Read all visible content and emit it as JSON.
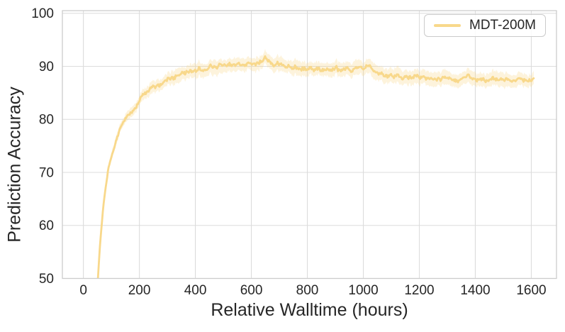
{
  "figure": {
    "background": "#ffffff"
  },
  "chart_data": {
    "type": "line",
    "title": "",
    "xlabel": "Relative Walltime (hours)",
    "ylabel": "Prediction Accuracy",
    "xlim": [
      -75,
      1690
    ],
    "ylim": [
      50,
      100.5
    ],
    "xticks": [
      "0",
      "200",
      "400",
      "600",
      "800",
      "1000",
      "1200",
      "1400",
      "1600"
    ],
    "xtick_values": [
      0,
      200,
      400,
      600,
      800,
      1000,
      1200,
      1400,
      1600
    ],
    "yticks": [
      "50",
      "60",
      "70",
      "80",
      "90",
      "100"
    ],
    "ytick_values": [
      50,
      60,
      70,
      80,
      90,
      100
    ],
    "grid": true,
    "colors": {
      "grid": "#dcdcdc",
      "spine": "#cccccc",
      "text": "#262626"
    },
    "legend": {
      "position": "upper-right",
      "entries": [
        {
          "label": "MDT-200M",
          "color": "#F8D88B"
        }
      ]
    },
    "series": [
      {
        "name": "MDT-200M",
        "line_color": "#F8D88B",
        "band_color": "#F8D88B",
        "band_opacity": 0.3,
        "band_halfwidth": 1.3,
        "noise_amplitude": 0.55,
        "x": [
          48,
          53,
          58,
          64,
          72,
          80,
          90,
          100,
          112,
          125,
          138,
          150,
          165,
          180,
          200,
          220,
          240,
          260,
          280,
          300,
          320,
          340,
          360,
          380,
          400,
          420,
          440,
          460,
          480,
          500,
          520,
          540,
          560,
          580,
          600,
          615,
          630,
          642,
          650,
          658,
          670,
          685,
          700,
          720,
          740,
          760,
          780,
          800,
          830,
          860,
          890,
          920,
          950,
          980,
          1005,
          1025,
          1035,
          1045,
          1060,
          1080,
          1100,
          1130,
          1160,
          1190,
          1220,
          1250,
          1280,
          1310,
          1340,
          1370,
          1400,
          1430,
          1460,
          1490,
          1520,
          1550,
          1575,
          1595,
          1612
        ],
        "y": [
          46,
          51,
          55.5,
          59.5,
          64,
          67.5,
          70.8,
          72.8,
          75.2,
          77.4,
          78.9,
          80.3,
          80.9,
          81.8,
          83.4,
          84.8,
          85.8,
          86.3,
          87.0,
          87.6,
          88.0,
          88.5,
          88.8,
          89.0,
          89.3,
          89.6,
          89.4,
          89.8,
          90.1,
          90.4,
          90.1,
          90.5,
          90.2,
          90.4,
          90.8,
          90.9,
          91.1,
          91.0,
          92.0,
          91.0,
          90.6,
          90.4,
          90.2,
          89.9,
          89.8,
          90.0,
          89.7,
          89.8,
          89.6,
          89.5,
          89.6,
          89.4,
          89.5,
          89.3,
          89.6,
          90.3,
          89.4,
          88.8,
          88.5,
          88.3,
          88.2,
          88.0,
          87.9,
          88.0,
          87.8,
          87.9,
          87.6,
          87.8,
          87.5,
          87.7,
          87.5,
          87.6,
          87.4,
          87.6,
          87.3,
          87.5,
          87.3,
          87.7,
          87.6
        ]
      }
    ]
  }
}
